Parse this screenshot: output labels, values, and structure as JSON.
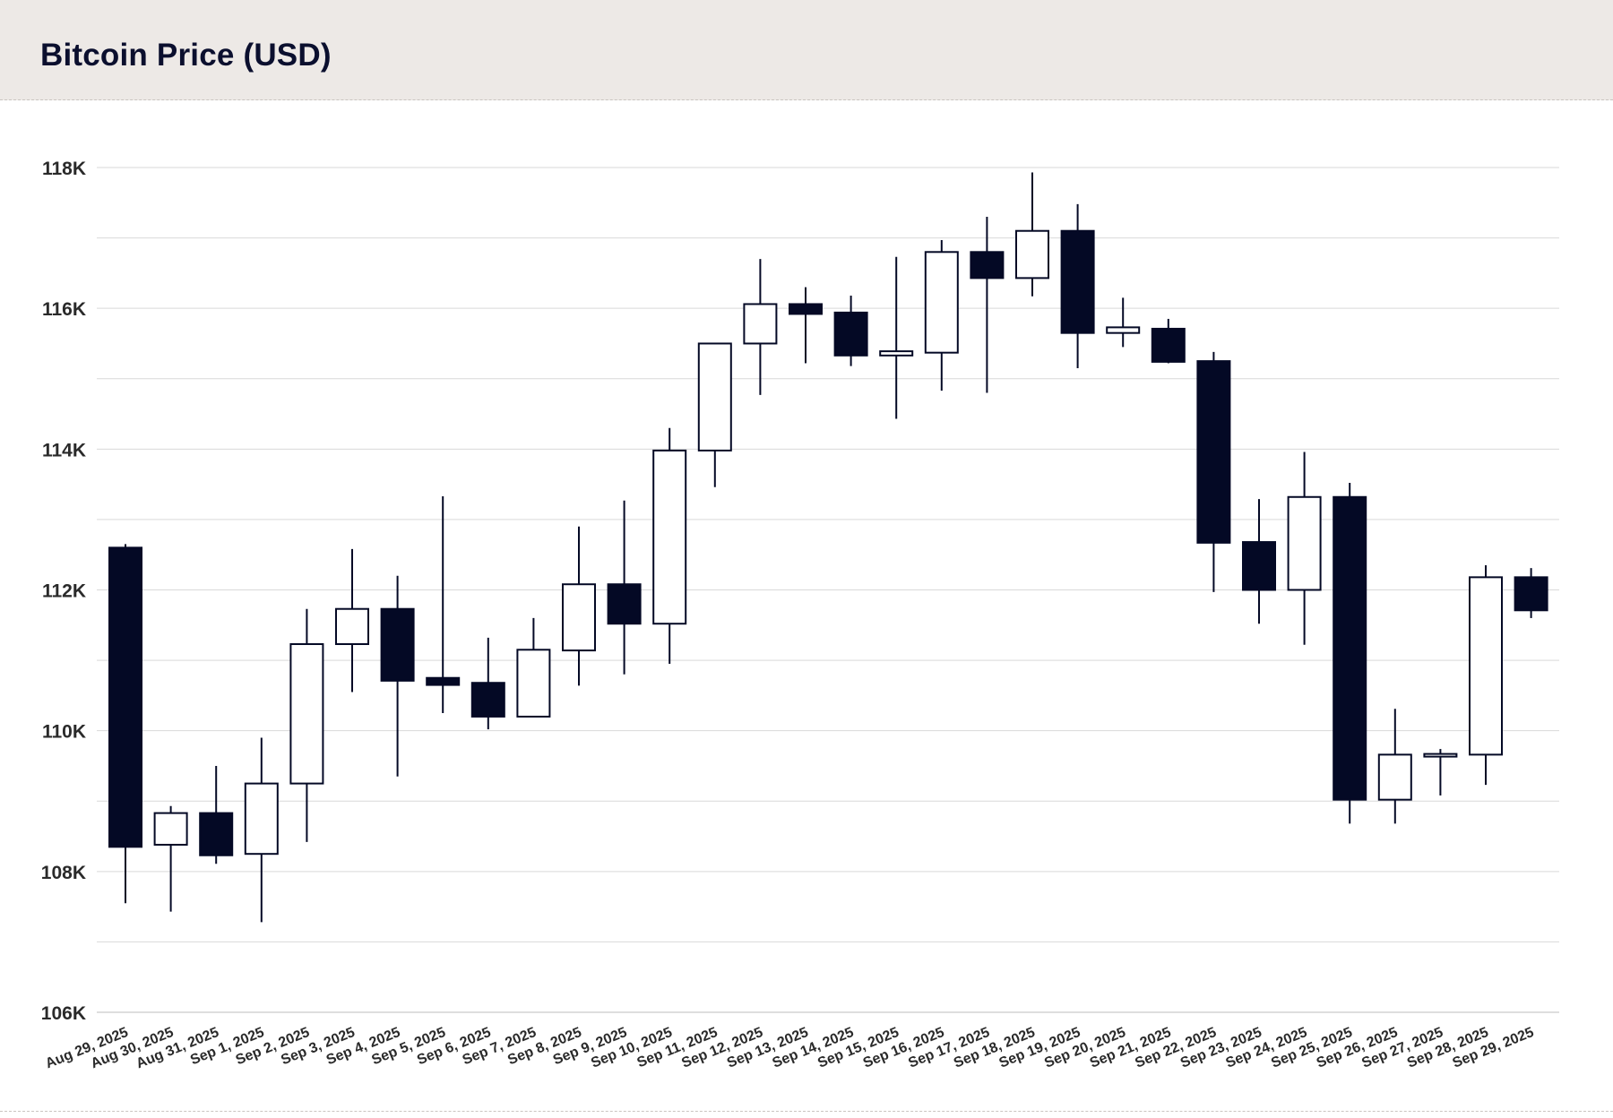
{
  "header": {
    "title": "Bitcoin Price (USD)"
  },
  "colors": {
    "down_fill": "#040925",
    "up_fill": "#ffffff",
    "stroke": "#040925",
    "grid": "#d9d9d9",
    "header_bg": "#ede9e6"
  },
  "chart_data": {
    "type": "candlestick",
    "title": "Bitcoin Price (USD)",
    "xlabel": "",
    "ylabel": "",
    "ylim": [
      106000,
      118000
    ],
    "yticks": [
      106000,
      108000,
      110000,
      112000,
      114000,
      116000,
      118000
    ],
    "ytick_labels": [
      "106K",
      "108K",
      "110K",
      "112K",
      "114K",
      "116K",
      "118K"
    ],
    "grid": true,
    "candles": [
      {
        "date": "Aug 29, 2025",
        "open": 112600,
        "high": 112650,
        "low": 107550,
        "close": 108350
      },
      {
        "date": "Aug 30, 2025",
        "open": 108380,
        "high": 108930,
        "low": 107430,
        "close": 108830
      },
      {
        "date": "Aug 31, 2025",
        "open": 108830,
        "high": 109500,
        "low": 108110,
        "close": 108230
      },
      {
        "date": "Sep 1, 2025",
        "open": 108250,
        "high": 109900,
        "low": 107280,
        "close": 109250
      },
      {
        "date": "Sep 2, 2025",
        "open": 109250,
        "high": 111730,
        "low": 108420,
        "close": 111230
      },
      {
        "date": "Sep 3, 2025",
        "open": 111230,
        "high": 112580,
        "low": 110550,
        "close": 111730
      },
      {
        "date": "Sep 4, 2025",
        "open": 111730,
        "high": 112200,
        "low": 109350,
        "close": 110710
      },
      {
        "date": "Sep 5, 2025",
        "open": 110750,
        "high": 113330,
        "low": 110250,
        "close": 110650
      },
      {
        "date": "Sep 6, 2025",
        "open": 110680,
        "high": 111320,
        "low": 110020,
        "close": 110200
      },
      {
        "date": "Sep 7, 2025",
        "open": 110200,
        "high": 111600,
        "low": 110200,
        "close": 111150
      },
      {
        "date": "Sep 8, 2025",
        "open": 111140,
        "high": 112900,
        "low": 110640,
        "close": 112080
      },
      {
        "date": "Sep 9, 2025",
        "open": 112080,
        "high": 113270,
        "low": 110800,
        "close": 111520
      },
      {
        "date": "Sep 10, 2025",
        "open": 111520,
        "high": 114300,
        "low": 110950,
        "close": 113980
      },
      {
        "date": "Sep 11, 2025",
        "open": 113980,
        "high": 115500,
        "low": 113460,
        "close": 115500
      },
      {
        "date": "Sep 12, 2025",
        "open": 115500,
        "high": 116700,
        "low": 114770,
        "close": 116060
      },
      {
        "date": "Sep 13, 2025",
        "open": 116060,
        "high": 116300,
        "low": 115220,
        "close": 115920
      },
      {
        "date": "Sep 14, 2025",
        "open": 115940,
        "high": 116180,
        "low": 115180,
        "close": 115330
      },
      {
        "date": "Sep 15, 2025",
        "open": 115330,
        "high": 116730,
        "low": 114430,
        "close": 115390
      },
      {
        "date": "Sep 16, 2025",
        "open": 115370,
        "high": 116970,
        "low": 114830,
        "close": 116800
      },
      {
        "date": "Sep 17, 2025",
        "open": 116800,
        "high": 117300,
        "low": 114800,
        "close": 116430
      },
      {
        "date": "Sep 18, 2025",
        "open": 116430,
        "high": 117930,
        "low": 116170,
        "close": 117100
      },
      {
        "date": "Sep 19, 2025",
        "open": 117100,
        "high": 117480,
        "low": 115150,
        "close": 115650
      },
      {
        "date": "Sep 20, 2025",
        "open": 115650,
        "high": 116150,
        "low": 115450,
        "close": 115730
      },
      {
        "date": "Sep 21, 2025",
        "open": 115710,
        "high": 115850,
        "low": 115220,
        "close": 115240
      },
      {
        "date": "Sep 22, 2025",
        "open": 115250,
        "high": 115380,
        "low": 111970,
        "close": 112670
      },
      {
        "date": "Sep 23, 2025",
        "open": 112680,
        "high": 113290,
        "low": 111520,
        "close": 112000
      },
      {
        "date": "Sep 24, 2025",
        "open": 112000,
        "high": 113960,
        "low": 111220,
        "close": 113320
      },
      {
        "date": "Sep 25, 2025",
        "open": 113320,
        "high": 113520,
        "low": 108680,
        "close": 109020
      },
      {
        "date": "Sep 26, 2025",
        "open": 109020,
        "high": 110310,
        "low": 108680,
        "close": 109660
      },
      {
        "date": "Sep 27, 2025",
        "open": 109650,
        "high": 109740,
        "low": 109080,
        "close": 109670
      },
      {
        "date": "Sep 28, 2025",
        "open": 109660,
        "high": 112350,
        "low": 109230,
        "close": 112180
      },
      {
        "date": "Sep 29, 2025",
        "open": 112180,
        "high": 112310,
        "low": 111600,
        "close": 111710
      }
    ]
  }
}
